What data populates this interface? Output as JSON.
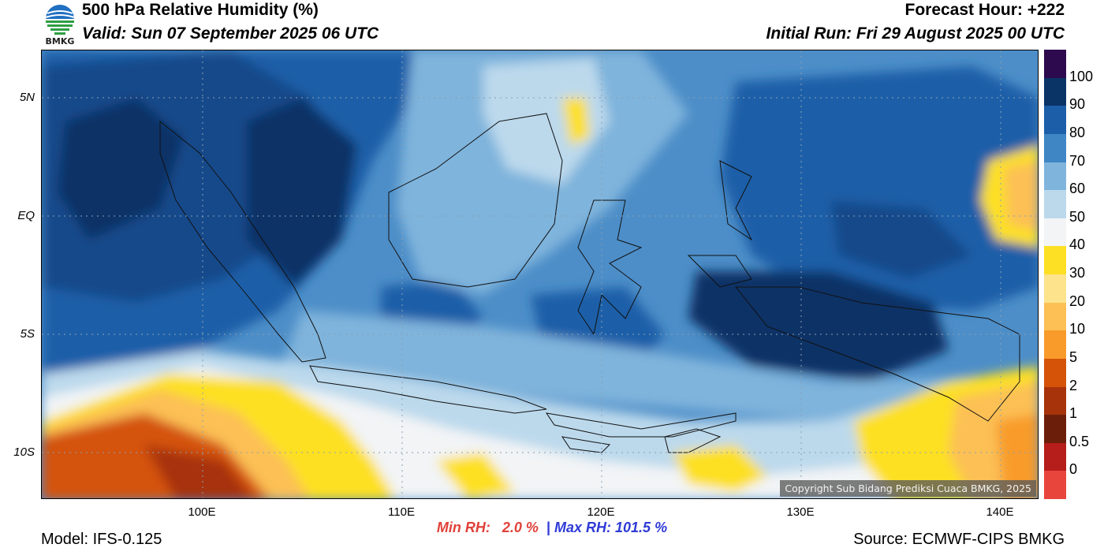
{
  "header": {
    "title": "500 hPa Relative Humidity (%)",
    "valid": "Valid: Sun 07 September 2025 06 UTC",
    "forecast_hour": "Forecast Hour: +222",
    "initial_run": "Initial Run: Fri 29 August 2025 00 UTC",
    "logo_text": "BMKG"
  },
  "map": {
    "copyright": "Copyright Sub Bidang Prediksi Cuaca BMKG, 2025",
    "lat_labels": [
      "5N",
      "EQ",
      "5S",
      "10S"
    ],
    "lon_labels": [
      "100E",
      "110E",
      "120E",
      "130E",
      "140E"
    ]
  },
  "colorbar": {
    "labels": [
      "100",
      "90",
      "80",
      "70",
      "60",
      "50",
      "40",
      "30",
      "20",
      "10",
      "5",
      "2",
      "1",
      "0.5",
      "0"
    ],
    "colors": [
      "#2d0a4e",
      "#0a3366",
      "#1c5ea8",
      "#3e86c4",
      "#7fb4dc",
      "#bcd9ec",
      "#f2f4f6",
      "#fde024",
      "#fde38c",
      "#fcc055",
      "#f89b2a",
      "#d45309",
      "#a7330b",
      "#6b1f0a",
      "#b51e1a",
      "#e8453c"
    ]
  },
  "footer": {
    "min_rh": "Min RH:   2.0 %",
    "separator": "|",
    "max_rh": "Max RH: 101.5 %",
    "model": "Model: IFS-0.125",
    "source": "Source: ECMWF-CIPS BMKG"
  }
}
